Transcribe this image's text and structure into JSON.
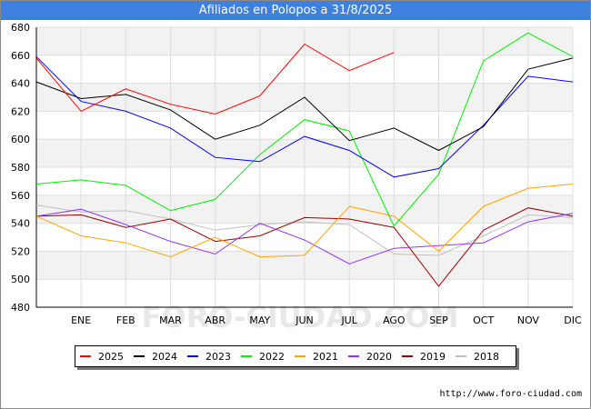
{
  "page": {
    "title": "Afiliados en Polopos a 31/8/2025",
    "footer": "http://www.foro-ciudad.com",
    "watermark": "FORO-CIUDAD.COM"
  },
  "chart_data": {
    "type": "line",
    "title": "Afiliados en Polopos a 31/8/2025",
    "xlabel": "",
    "ylabel": "",
    "categories": [
      "",
      "ENE",
      "FEB",
      "MAR",
      "ABR",
      "MAY",
      "JUN",
      "JUL",
      "AGO",
      "SEP",
      "OCT",
      "NOV",
      "DIC"
    ],
    "ylim": [
      480,
      680
    ],
    "yticks": [
      480,
      500,
      520,
      540,
      560,
      580,
      600,
      620,
      640,
      660,
      680
    ],
    "grid": true,
    "legend": "bottom",
    "series": [
      {
        "name": "2025",
        "color": "#ff0000",
        "values": [
          658,
          620,
          636,
          625,
          618,
          631,
          668,
          649,
          662,
          null,
          null,
          null,
          null
        ]
      },
      {
        "name": "2024",
        "color": "#000000",
        "values": [
          641,
          629,
          632,
          621,
          600,
          610,
          630,
          599,
          608,
          592,
          609,
          650,
          658
        ]
      },
      {
        "name": "2023",
        "color": "#0000ff",
        "values": [
          659,
          627,
          620,
          608,
          587,
          584,
          602,
          592,
          573,
          579,
          610,
          645,
          641
        ]
      },
      {
        "name": "2022",
        "color": "#00ee00",
        "values": [
          568,
          571,
          567,
          549,
          557,
          589,
          614,
          606,
          538,
          575,
          656,
          676,
          659
        ]
      },
      {
        "name": "2021",
        "color": "#ffa500",
        "values": [
          545,
          531,
          526,
          516,
          530,
          516,
          517,
          552,
          545,
          520,
          552,
          565,
          568
        ]
      },
      {
        "name": "2020",
        "color": "#9933ff",
        "values": [
          545,
          550,
          539,
          527,
          518,
          540,
          528,
          511,
          522,
          524,
          526,
          541,
          547
        ]
      },
      {
        "name": "2019",
        "color": "#990000",
        "values": [
          545,
          546,
          537,
          543,
          527,
          531,
          544,
          543,
          537,
          495,
          535,
          551,
          545
        ]
      },
      {
        "name": "2018",
        "color": "#c0c0c0",
        "values": [
          553,
          548,
          549,
          543,
          535,
          539,
          541,
          539,
          518,
          517,
          531,
          546,
          544
        ]
      }
    ]
  }
}
